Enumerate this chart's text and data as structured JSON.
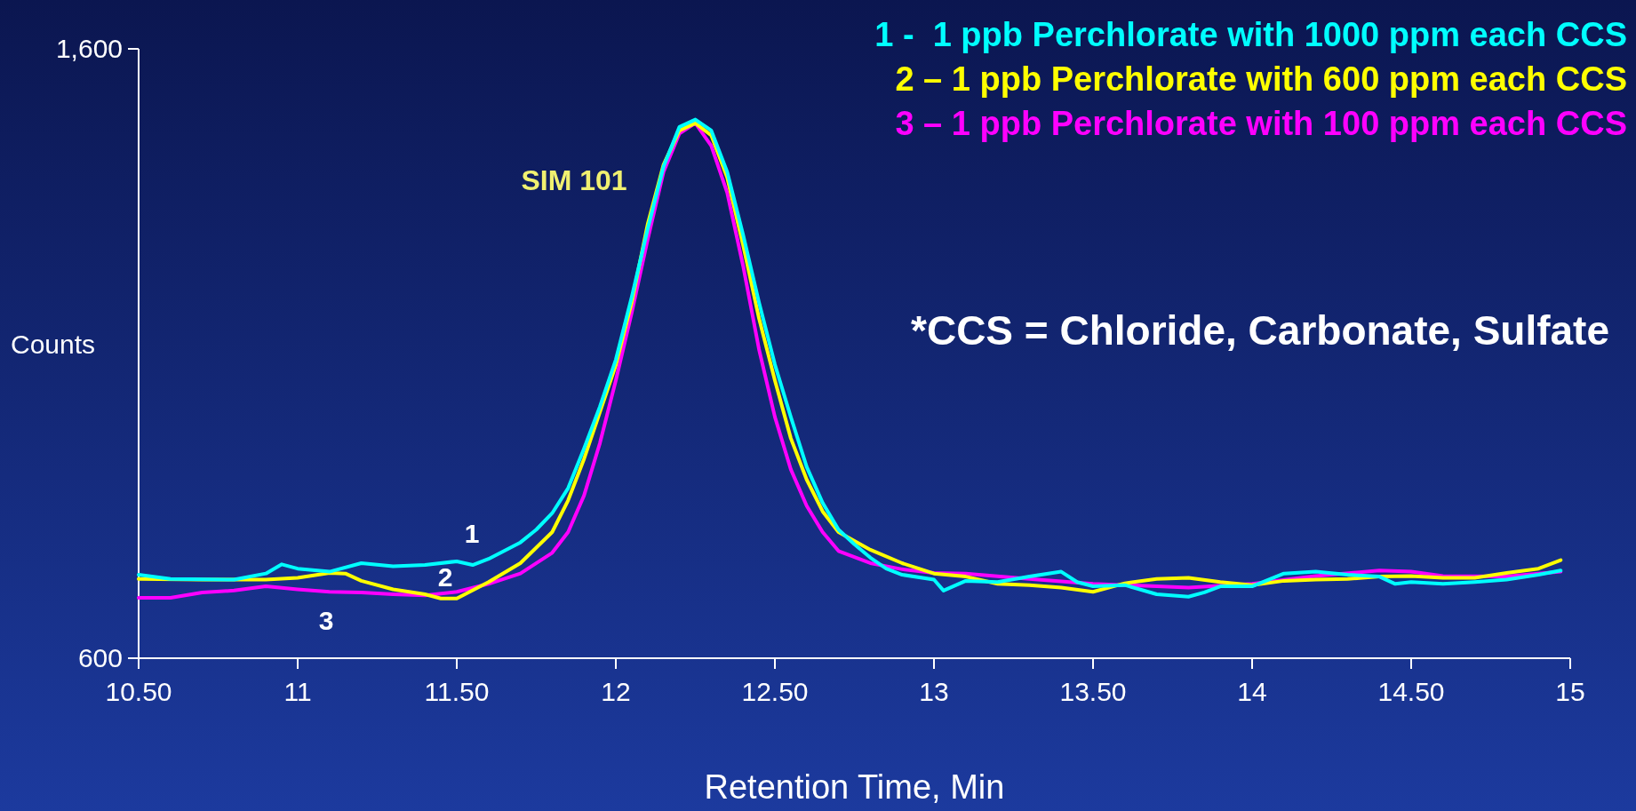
{
  "chart_data": {
    "type": "line",
    "xlabel": "Retention Time, Min",
    "ylabel": "Counts",
    "xlim": [
      10.5,
      15
    ],
    "ylim": [
      600,
      1600
    ],
    "xticks": [
      {
        "value": 10.5,
        "label": "10.50"
      },
      11,
      {
        "value": 11.5,
        "label": "11.50"
      },
      12,
      {
        "value": 12.5,
        "label": "12.50"
      },
      13,
      {
        "value": 13.5,
        "label": "13.50"
      },
      14,
      {
        "value": 14.5,
        "label": "14.50"
      },
      15
    ],
    "yticks": [
      {
        "value": 600,
        "label": "600"
      },
      {
        "value": 1600,
        "label": "1,600"
      }
    ],
    "grid": false,
    "legend": "top right",
    "marker": "none",
    "line_style": "solid",
    "annotations": [
      "SIM 101",
      "1",
      "2",
      "3",
      "*CCS = Chloride, Carbonate, Sulfate"
    ],
    "series": [
      {
        "name": "1 -  1 ppb Perchlorate with 1000 ppm each CCS",
        "color": "#00ffff",
        "x": [
          10.5,
          10.6,
          10.8,
          10.9,
          10.95,
          11.0,
          11.1,
          11.2,
          11.3,
          11.4,
          11.5,
          11.55,
          11.6,
          11.7,
          11.75,
          11.8,
          11.85,
          11.9,
          11.95,
          12.0,
          12.05,
          12.1,
          12.15,
          12.2,
          12.25,
          12.3,
          12.35,
          12.4,
          12.45,
          12.5,
          12.55,
          12.6,
          12.65,
          12.7,
          12.75,
          12.8,
          12.85,
          12.9,
          13.0,
          13.03,
          13.1,
          13.2,
          13.3,
          13.4,
          13.45,
          13.5,
          13.6,
          13.7,
          13.8,
          13.85,
          13.9,
          14.0,
          14.1,
          14.2,
          14.3,
          14.4,
          14.45,
          14.5,
          14.6,
          14.7,
          14.8,
          14.9,
          14.97
        ],
        "values": [
          737,
          730,
          729,
          739,
          754,
          747,
          742,
          756,
          751,
          753,
          759,
          753,
          763,
          790,
          811,
          838,
          879,
          944,
          1013,
          1090,
          1193,
          1304,
          1407,
          1472,
          1484,
          1466,
          1398,
          1295,
          1184,
          1082,
          996,
          914,
          855,
          811,
          787,
          765,
          747,
          737,
          729,
          711,
          727,
          725,
          734,
          742,
          725,
          718,
          720,
          705,
          701,
          708,
          718,
          718,
          739,
          742,
          737,
          734,
          722,
          725,
          722,
          725,
          729,
          737,
          744
        ]
      },
      {
        "name": "2 – 1 ppb Perchlorate with 600 ppm each CCS",
        "color": "#ffff00",
        "x": [
          10.5,
          10.7,
          10.9,
          11.0,
          11.1,
          11.15,
          11.2,
          11.3,
          11.4,
          11.45,
          11.5,
          11.6,
          11.7,
          11.8,
          11.85,
          11.9,
          11.95,
          12.0,
          12.05,
          12.1,
          12.15,
          12.2,
          12.25,
          12.3,
          12.35,
          12.4,
          12.45,
          12.5,
          12.55,
          12.6,
          12.65,
          12.7,
          12.8,
          12.9,
          13.0,
          13.1,
          13.2,
          13.3,
          13.4,
          13.5,
          13.6,
          13.7,
          13.8,
          13.9,
          14.0,
          14.1,
          14.2,
          14.3,
          14.4,
          14.5,
          14.6,
          14.7,
          14.8,
          14.9,
          14.97
        ],
        "values": [
          730,
          729,
          729,
          732,
          740,
          739,
          727,
          713,
          705,
          698,
          698,
          725,
          756,
          807,
          859,
          927,
          1004,
          1081,
          1184,
          1312,
          1410,
          1466,
          1478,
          1458,
          1389,
          1278,
          1158,
          1056,
          961,
          893,
          841,
          807,
          778,
          756,
          739,
          734,
          722,
          720,
          716,
          709,
          723,
          730,
          732,
          725,
          720,
          727,
          729,
          730,
          734,
          735,
          732,
          732,
          740,
          747,
          761
        ]
      },
      {
        "name": "3 – 1 ppb Perchlorate with 100 ppm each CCS",
        "color": "#ff00ff",
        "x": [
          10.5,
          10.6,
          10.7,
          10.8,
          10.9,
          11.0,
          11.1,
          11.2,
          11.3,
          11.4,
          11.5,
          11.6,
          11.7,
          11.8,
          11.85,
          11.9,
          11.95,
          12.0,
          12.05,
          12.1,
          12.15,
          12.2,
          12.25,
          12.3,
          12.35,
          12.4,
          12.45,
          12.5,
          12.55,
          12.6,
          12.65,
          12.7,
          12.8,
          12.9,
          13.0,
          13.1,
          13.3,
          13.5,
          13.7,
          13.8,
          14.0,
          14.2,
          14.4,
          14.5,
          14.6,
          14.8,
          14.97
        ],
        "values": [
          699,
          699,
          708,
          711,
          718,
          713,
          709,
          708,
          705,
          703,
          709,
          722,
          739,
          773,
          807,
          867,
          953,
          1056,
          1167,
          1287,
          1398,
          1461,
          1478,
          1441,
          1364,
          1244,
          1107,
          996,
          910,
          850,
          807,
          776,
          756,
          746,
          740,
          739,
          730,
          722,
          718,
          716,
          722,
          735,
          744,
          742,
          735,
          734,
          742
        ]
      }
    ]
  }
}
